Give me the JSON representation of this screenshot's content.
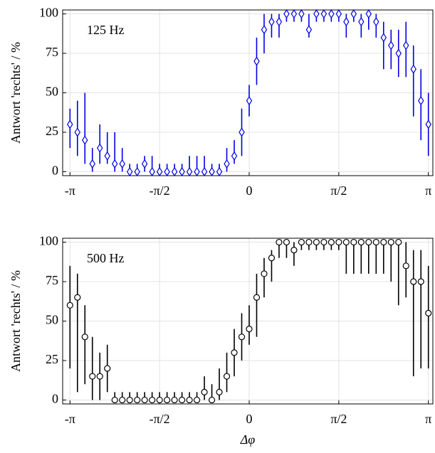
{
  "chart_data": [
    {
      "type": "errorbar",
      "annotation": "125 Hz",
      "ylabel": "Antwort 'rechts' / %",
      "color": "#0000e6",
      "marker": "diamond",
      "grid": true,
      "xlim": [
        -3.27,
        3.22
      ],
      "ylim": [
        -2.5,
        102.5
      ],
      "xticks": [
        {
          "value": -3.1416,
          "label": "-π"
        },
        {
          "value": -1.5708,
          "label": "-π/2"
        },
        0,
        {
          "value": 1.5708,
          "label": "π/2"
        },
        {
          "value": 3.1416,
          "label": "π"
        }
      ],
      "yticks": [
        0,
        25,
        50,
        75,
        100
      ],
      "x": [
        -3.1416,
        -3.0107,
        -2.8798,
        -2.7489,
        -2.618,
        -2.4871,
        -2.3562,
        -2.2253,
        -2.0944,
        -1.9635,
        -1.8326,
        -1.7017,
        -1.5708,
        -1.4399,
        -1.309,
        -1.1781,
        -1.0472,
        -0.9163,
        -0.7854,
        -0.6545,
        -0.5236,
        -0.3927,
        -0.2618,
        -0.1309,
        0,
        0.1309,
        0.2618,
        0.3927,
        0.5236,
        0.6545,
        0.7854,
        0.9163,
        1.0472,
        1.1781,
        1.309,
        1.4399,
        1.5708,
        1.7017,
        1.8326,
        1.9635,
        2.0944,
        2.2253,
        2.3562,
        2.4871,
        2.618,
        2.7489,
        2.8798,
        3.0107,
        3.1416
      ],
      "values": [
        30,
        25,
        20,
        5,
        15,
        10,
        5,
        5,
        0,
        0,
        5,
        0,
        0,
        0,
        0,
        0,
        0,
        0,
        0,
        0,
        0,
        5,
        10,
        25,
        45,
        70,
        90,
        95,
        95,
        100,
        100,
        100,
        90,
        100,
        100,
        100,
        100,
        95,
        100,
        95,
        100,
        95,
        85,
        80,
        75,
        80,
        65,
        45,
        30
      ],
      "lower": [
        15,
        10,
        5,
        0,
        5,
        5,
        0,
        0,
        0,
        0,
        0,
        0,
        0,
        0,
        0,
        0,
        0,
        0,
        0,
        0,
        0,
        0,
        5,
        10,
        35,
        55,
        75,
        85,
        85,
        95,
        95,
        95,
        85,
        95,
        95,
        95,
        95,
        85,
        95,
        85,
        90,
        85,
        65,
        65,
        60,
        60,
        35,
        20,
        10
      ],
      "upper": [
        40,
        45,
        50,
        15,
        30,
        25,
        25,
        15,
        5,
        5,
        10,
        10,
        5,
        5,
        5,
        5,
        10,
        10,
        10,
        5,
        5,
        15,
        20,
        40,
        55,
        85,
        100,
        100,
        100,
        100,
        100,
        100,
        100,
        100,
        100,
        100,
        100,
        100,
        100,
        100,
        100,
        100,
        95,
        90,
        90,
        95,
        80,
        65,
        50
      ]
    },
    {
      "type": "errorbar",
      "annotation": "500 Hz",
      "ylabel": "Antwort 'rechts' / %",
      "xlabel": "Δφ",
      "color": "#000000",
      "marker": "circle",
      "grid": true,
      "xlim": [
        -3.27,
        3.22
      ],
      "ylim": [
        -2.5,
        102.5
      ],
      "xticks": [
        {
          "value": -3.1416,
          "label": "-π"
        },
        {
          "value": -1.5708,
          "label": "-π/2"
        },
        0,
        {
          "value": 1.5708,
          "label": "π/2"
        },
        {
          "value": 3.1416,
          "label": "π"
        }
      ],
      "yticks": [
        0,
        25,
        50,
        75,
        100
      ],
      "x": [
        -3.1416,
        -3.0107,
        -2.8798,
        -2.7489,
        -2.618,
        -2.4871,
        -2.3562,
        -2.2253,
        -2.0944,
        -1.9635,
        -1.8326,
        -1.7017,
        -1.5708,
        -1.4399,
        -1.309,
        -1.1781,
        -1.0472,
        -0.9163,
        -0.7854,
        -0.6545,
        -0.5236,
        -0.3927,
        -0.2618,
        -0.1309,
        0,
        0.1309,
        0.2618,
        0.3927,
        0.5236,
        0.6545,
        0.7854,
        0.9163,
        1.0472,
        1.1781,
        1.309,
        1.4399,
        1.5708,
        1.7017,
        1.8326,
        1.9635,
        2.0944,
        2.2253,
        2.3562,
        2.4871,
        2.618,
        2.7489,
        2.8798,
        3.0107,
        3.1416
      ],
      "values": [
        60,
        65,
        40,
        15,
        15,
        20,
        0,
        0,
        0,
        0,
        0,
        0,
        0,
        0,
        0,
        0,
        0,
        0,
        5,
        0,
        5,
        15,
        30,
        40,
        45,
        65,
        80,
        90,
        100,
        100,
        95,
        100,
        100,
        100,
        100,
        100,
        100,
        100,
        100,
        100,
        100,
        100,
        100,
        100,
        100,
        85,
        75,
        75,
        55
      ],
      "lower": [
        20,
        5,
        10,
        0,
        0,
        5,
        0,
        0,
        0,
        0,
        0,
        0,
        0,
        0,
        0,
        0,
        0,
        0,
        0,
        0,
        0,
        5,
        15,
        25,
        35,
        40,
        65,
        75,
        90,
        90,
        85,
        95,
        95,
        95,
        95,
        95,
        95,
        80,
        80,
        80,
        80,
        80,
        80,
        75,
        60,
        65,
        15,
        20,
        20
      ],
      "upper": [
        85,
        80,
        60,
        40,
        30,
        35,
        5,
        5,
        5,
        5,
        5,
        5,
        5,
        5,
        5,
        5,
        5,
        5,
        15,
        10,
        20,
        30,
        45,
        55,
        60,
        80,
        90,
        95,
        100,
        100,
        100,
        100,
        100,
        100,
        100,
        100,
        100,
        100,
        100,
        100,
        100,
        100,
        100,
        100,
        100,
        100,
        95,
        95,
        85
      ]
    }
  ]
}
